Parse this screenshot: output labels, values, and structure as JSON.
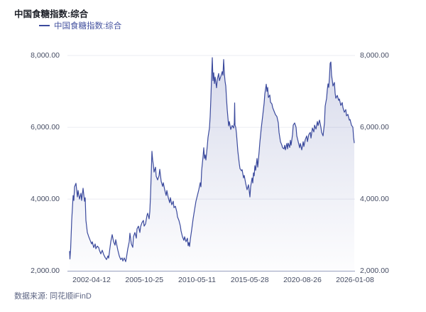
{
  "header": {
    "title": "中国食糖指数:综合"
  },
  "legend": {
    "label": "中国食糖指数:综合",
    "marker_color": "#3b4a9d"
  },
  "footer": {
    "source": "数据来源: 同花顺iFinD"
  },
  "colors": {
    "line": "#3b4a9d",
    "grid": "#ebecf2",
    "axis_line": "#98a0bf",
    "axis_text": "#454c63",
    "area_top": "rgba(59,74,157,0.20)",
    "area_bottom": "rgba(59,74,157,0.01)"
  },
  "chart_data": {
    "type": "area",
    "title": "中国食糖指数:综合",
    "series_name": "中国食糖指数:综合",
    "grid": true,
    "legend_position": "top-left",
    "y_axis": {
      "min": 2000,
      "max": 8000,
      "tick_values": [
        8000,
        6000,
        4000,
        2000
      ],
      "tick_labels": [
        "8,000.00",
        "6,000.00",
        "4,000.00",
        "2,000.00"
      ],
      "mirrored_right": true
    },
    "x_axis": {
      "tick_labels": [
        "2002-04-12",
        "2005-10-25",
        "2010-05-11",
        "2015-05-28",
        "2020-08-26",
        "2026-01-08"
      ],
      "tick_positions": [
        0.084,
        0.2673,
        0.4506,
        0.6339,
        0.8172,
        1.0
      ]
    },
    "points": [
      [
        0.0074,
        2550
      ],
      [
        0.0086,
        2330
      ],
      [
        0.0111,
        2620
      ],
      [
        0.0148,
        3410
      ],
      [
        0.0198,
        4100
      ],
      [
        0.0222,
        3960
      ],
      [
        0.0247,
        4340
      ],
      [
        0.0296,
        4440
      ],
      [
        0.0346,
        4060
      ],
      [
        0.037,
        4240
      ],
      [
        0.042,
        4000
      ],
      [
        0.0469,
        4160
      ],
      [
        0.0494,
        3960
      ],
      [
        0.0543,
        4300
      ],
      [
        0.0593,
        3940
      ],
      [
        0.0617,
        4040
      ],
      [
        0.0642,
        3410
      ],
      [
        0.0691,
        3070
      ],
      [
        0.0741,
        2950
      ],
      [
        0.079,
        2850
      ],
      [
        0.084,
        2750
      ],
      [
        0.0864,
        2810
      ],
      [
        0.0914,
        2650
      ],
      [
        0.0963,
        2750
      ],
      [
        0.0988,
        2615
      ],
      [
        0.1037,
        2690
      ],
      [
        0.1086,
        2650
      ],
      [
        0.1111,
        2575
      ],
      [
        0.116,
        2475
      ],
      [
        0.121,
        2575
      ],
      [
        0.1259,
        2455
      ],
      [
        0.1309,
        2375
      ],
      [
        0.1358,
        2315
      ],
      [
        0.1407,
        2415
      ],
      [
        0.1432,
        2355
      ],
      [
        0.1506,
        2810
      ],
      [
        0.1556,
        3010
      ],
      [
        0.1605,
        2810
      ],
      [
        0.1654,
        2715
      ],
      [
        0.1679,
        2870
      ],
      [
        0.1753,
        2575
      ],
      [
        0.1802,
        2415
      ],
      [
        0.1852,
        2315
      ],
      [
        0.1901,
        2360
      ],
      [
        0.1926,
        2275
      ],
      [
        0.1975,
        2360
      ],
      [
        0.2025,
        2255
      ],
      [
        0.2049,
        2360
      ],
      [
        0.2099,
        2615
      ],
      [
        0.2148,
        2810
      ],
      [
        0.2173,
        3050
      ],
      [
        0.2222,
        2750
      ],
      [
        0.2272,
        2655
      ],
      [
        0.2296,
        2950
      ],
      [
        0.2346,
        3070
      ],
      [
        0.2395,
        2910
      ],
      [
        0.242,
        3170
      ],
      [
        0.2469,
        3245
      ],
      [
        0.2519,
        3070
      ],
      [
        0.2543,
        3230
      ],
      [
        0.2593,
        3345
      ],
      [
        0.2642,
        3405
      ],
      [
        0.2667,
        3245
      ],
      [
        0.2716,
        3310
      ],
      [
        0.2765,
        3545
      ],
      [
        0.279,
        3605
      ],
      [
        0.284,
        3450
      ],
      [
        0.2864,
        3650
      ],
      [
        0.2889,
        4100
      ],
      [
        0.2914,
        4700
      ],
      [
        0.2938,
        5330
      ],
      [
        0.2963,
        5090
      ],
      [
        0.2988,
        4950
      ],
      [
        0.3012,
        4750
      ],
      [
        0.3062,
        4890
      ],
      [
        0.3086,
        4635
      ],
      [
        0.3136,
        4535
      ],
      [
        0.3185,
        4655
      ],
      [
        0.321,
        4830
      ],
      [
        0.3259,
        4495
      ],
      [
        0.3309,
        4355
      ],
      [
        0.3333,
        4455
      ],
      [
        0.3383,
        4255
      ],
      [
        0.3432,
        4100
      ],
      [
        0.3457,
        4240
      ],
      [
        0.3506,
        4040
      ],
      [
        0.3556,
        3900
      ],
      [
        0.358,
        4040
      ],
      [
        0.363,
        3840
      ],
      [
        0.3679,
        3940
      ],
      [
        0.3704,
        3760
      ],
      [
        0.3753,
        3800
      ],
      [
        0.3802,
        3645
      ],
      [
        0.3827,
        3505
      ],
      [
        0.3877,
        3405
      ],
      [
        0.3926,
        3250
      ],
      [
        0.3951,
        3110
      ],
      [
        0.4,
        2950
      ],
      [
        0.4049,
        2850
      ],
      [
        0.4074,
        2950
      ],
      [
        0.4123,
        2810
      ],
      [
        0.4173,
        2910
      ],
      [
        0.4198,
        2700
      ],
      [
        0.4222,
        2790
      ],
      [
        0.4247,
        2680
      ],
      [
        0.4272,
        2870
      ],
      [
        0.4321,
        3150
      ],
      [
        0.437,
        3450
      ],
      [
        0.442,
        3700
      ],
      [
        0.4469,
        3940
      ],
      [
        0.4519,
        4100
      ],
      [
        0.4568,
        4260
      ],
      [
        0.4617,
        4455
      ],
      [
        0.4642,
        4340
      ],
      [
        0.4667,
        4790
      ],
      [
        0.4716,
        5190
      ],
      [
        0.4741,
        5430
      ],
      [
        0.4765,
        5130
      ],
      [
        0.479,
        5230
      ],
      [
        0.4815,
        5090
      ],
      [
        0.4864,
        5490
      ],
      [
        0.4889,
        5720
      ],
      [
        0.4938,
        5980
      ],
      [
        0.4963,
        6300
      ],
      [
        0.4988,
        6800
      ],
      [
        0.5012,
        7400
      ],
      [
        0.5037,
        7940
      ],
      [
        0.5062,
        7300
      ],
      [
        0.5086,
        7520
      ],
      [
        0.5111,
        7220
      ],
      [
        0.5136,
        7400
      ],
      [
        0.5185,
        7100
      ],
      [
        0.521,
        7330
      ],
      [
        0.5259,
        7500
      ],
      [
        0.5284,
        7300
      ],
      [
        0.5333,
        7420
      ],
      [
        0.5383,
        7550
      ],
      [
        0.5407,
        7450
      ],
      [
        0.5432,
        7890
      ],
      [
        0.5457,
        7500
      ],
      [
        0.5481,
        7280
      ],
      [
        0.5506,
        7150
      ],
      [
        0.5531,
        6800
      ],
      [
        0.5556,
        6500
      ],
      [
        0.5605,
        6040
      ],
      [
        0.563,
        6160
      ],
      [
        0.5679,
        5940
      ],
      [
        0.5728,
        6050
      ],
      [
        0.5778,
        5980
      ],
      [
        0.5802,
        6120
      ],
      [
        0.5815,
        6680
      ],
      [
        0.5827,
        6060
      ],
      [
        0.5852,
        6000
      ],
      [
        0.5877,
        5840
      ],
      [
        0.5926,
        5330
      ],
      [
        0.5975,
        4990
      ],
      [
        0.6,
        4850
      ],
      [
        0.6049,
        4790
      ],
      [
        0.6074,
        4820
      ],
      [
        0.6123,
        4590
      ],
      [
        0.6148,
        4660
      ],
      [
        0.6198,
        4440
      ],
      [
        0.6247,
        4260
      ],
      [
        0.6296,
        4400
      ],
      [
        0.6346,
        4060
      ],
      [
        0.637,
        4340
      ],
      [
        0.642,
        4590
      ],
      [
        0.6444,
        4450
      ],
      [
        0.6469,
        4730
      ],
      [
        0.6494,
        4650
      ],
      [
        0.6519,
        4930
      ],
      [
        0.6543,
        4800
      ],
      [
        0.6593,
        5130
      ],
      [
        0.6617,
        4890
      ],
      [
        0.6667,
        5330
      ],
      [
        0.6691,
        5580
      ],
      [
        0.6741,
        5980
      ],
      [
        0.679,
        6320
      ],
      [
        0.684,
        6670
      ],
      [
        0.6864,
        6930
      ],
      [
        0.6914,
        7200
      ],
      [
        0.6938,
        7000
      ],
      [
        0.6963,
        7110
      ],
      [
        0.6988,
        6830
      ],
      [
        0.7037,
        6900
      ],
      [
        0.7062,
        6700
      ],
      [
        0.7111,
        6650
      ],
      [
        0.7136,
        6550
      ],
      [
        0.7185,
        6450
      ],
      [
        0.7235,
        6350
      ],
      [
        0.7284,
        6300
      ],
      [
        0.7333,
        6120
      ],
      [
        0.7358,
        5860
      ],
      [
        0.7407,
        5600
      ],
      [
        0.7457,
        5500
      ],
      [
        0.7481,
        5430
      ],
      [
        0.7531,
        5400
      ],
      [
        0.7556,
        5500
      ],
      [
        0.758,
        5370
      ],
      [
        0.763,
        5550
      ],
      [
        0.7654,
        5400
      ],
      [
        0.7679,
        5560
      ],
      [
        0.7728,
        5440
      ],
      [
        0.7753,
        5640
      ],
      [
        0.7778,
        5500
      ],
      [
        0.7827,
        5800
      ],
      [
        0.7852,
        6060
      ],
      [
        0.7901,
        6120
      ],
      [
        0.7951,
        6000
      ],
      [
        0.7975,
        5760
      ],
      [
        0.8025,
        5600
      ],
      [
        0.8074,
        5430
      ],
      [
        0.8099,
        5550
      ],
      [
        0.8148,
        5370
      ],
      [
        0.8198,
        5600
      ],
      [
        0.8222,
        5465
      ],
      [
        0.8272,
        5660
      ],
      [
        0.8321,
        5760
      ],
      [
        0.8346,
        5600
      ],
      [
        0.8395,
        5800
      ],
      [
        0.8444,
        5860
      ],
      [
        0.8469,
        5700
      ],
      [
        0.8519,
        5980
      ],
      [
        0.8568,
        5870
      ],
      [
        0.8593,
        6060
      ],
      [
        0.8642,
        5950
      ],
      [
        0.8691,
        6160
      ],
      [
        0.8716,
        6050
      ],
      [
        0.8765,
        6200
      ],
      [
        0.8815,
        6000
      ],
      [
        0.884,
        5860
      ],
      [
        0.8889,
        5760
      ],
      [
        0.8938,
        6120
      ],
      [
        0.8963,
        6590
      ],
      [
        0.9012,
        6810
      ],
      [
        0.9037,
        7050
      ],
      [
        0.9062,
        7210
      ],
      [
        0.9086,
        7110
      ],
      [
        0.9111,
        7390
      ],
      [
        0.9136,
        7780
      ],
      [
        0.916,
        7820
      ],
      [
        0.9185,
        7445
      ],
      [
        0.921,
        7310
      ],
      [
        0.9235,
        7150
      ],
      [
        0.9284,
        7250
      ],
      [
        0.9309,
        6950
      ],
      [
        0.9333,
        6810
      ],
      [
        0.9383,
        6890
      ],
      [
        0.9432,
        6750
      ],
      [
        0.9457,
        6790
      ],
      [
        0.9506,
        6610
      ],
      [
        0.9556,
        6690
      ],
      [
        0.958,
        6550
      ],
      [
        0.963,
        6420
      ],
      [
        0.9679,
        6495
      ],
      [
        0.9704,
        6320
      ],
      [
        0.9753,
        6360
      ],
      [
        0.9802,
        6200
      ],
      [
        0.9827,
        6220
      ],
      [
        0.9877,
        6060
      ],
      [
        0.9926,
        6000
      ],
      [
        0.9951,
        5720
      ],
      [
        0.9975,
        5560
      ]
    ]
  }
}
